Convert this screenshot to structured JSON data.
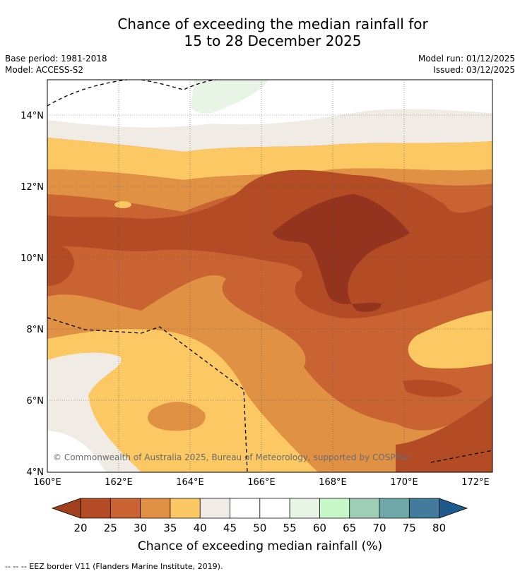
{
  "title": {
    "line1": "Chance of exceeding the median rainfall for",
    "line2": "15 to 28 December 2025"
  },
  "meta": {
    "base_period": "Base period: 1981-2018",
    "model": "Model: ACCESS-S2",
    "model_run": "Model run: 01/12/2025",
    "issued": "Issued: 03/12/2025"
  },
  "map": {
    "lon_ticks": [
      "160°E",
      "162°E",
      "164°E",
      "166°E",
      "168°E",
      "170°E",
      "172°E"
    ],
    "lat_ticks": [
      "14°N",
      "12°N",
      "10°N",
      "8°N",
      "6°N",
      "4°N"
    ],
    "copyright": "© Commonwealth of Australia 2025, Bureau of Meteorology, supported by COSPPac"
  },
  "colorbar": {
    "label": "Chance of exceeding median rainfall (%)",
    "ticks": [
      "20",
      "25",
      "30",
      "35",
      "40",
      "45",
      "50",
      "55",
      "60",
      "65",
      "70",
      "75",
      "80"
    ],
    "colors": {
      "lt20": "#a0401d",
      "c20_25": "#b34b25",
      "c25_30": "#c96432",
      "c30_35": "#e09143",
      "c35_40": "#fbc863",
      "c40_45": "#f0ece5",
      "c45_50": "#ffffff",
      "c50_55": "#ffffff",
      "c55_60": "#e8f5e6",
      "c60_65": "#c8f7c8",
      "c65_70": "#9ccfb5",
      "c70_75": "#6fa8a6",
      "c75_80": "#427b9c",
      "gt80": "#1e5a8c"
    }
  },
  "footnote": "--  --  -- EEZ border V11 (Flanders Marine Institute, 2019)."
}
